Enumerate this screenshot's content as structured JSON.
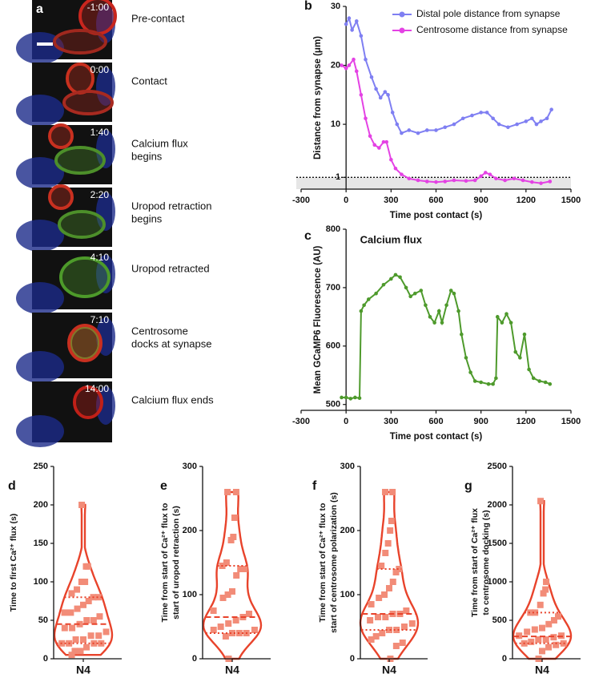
{
  "panel_a": {
    "label": "a",
    "frames": [
      {
        "time": "-1:00",
        "caption": [
          "Pre-contact"
        ]
      },
      {
        "time": "0:00",
        "caption": [
          "Contact"
        ]
      },
      {
        "time": "1:40",
        "caption": [
          "Calcium flux",
          "begins"
        ]
      },
      {
        "time": "2:20",
        "caption": [
          "Uropod retraction",
          "begins"
        ]
      },
      {
        "time": "4:10",
        "caption": [
          "Uropod retracted"
        ]
      },
      {
        "time": "7:10",
        "caption": [
          "Centrosome",
          "docks at synapse"
        ]
      },
      {
        "time": "14:00",
        "caption": [
          "Calcium flux ends"
        ]
      }
    ]
  },
  "chart_data": [
    {
      "type": "line",
      "panel": "b",
      "xlabel": "Time post contact (s)",
      "ylabel": "Distance from synapse (μm)",
      "xlim": [
        -300,
        1500
      ],
      "xticks": [
        -300,
        0,
        300,
        600,
        900,
        1200,
        1500
      ],
      "ylim": [
        -1,
        30
      ],
      "yticks": [
        1,
        10,
        20,
        30
      ],
      "y_axis_crosses_x": 0,
      "threshold": 1,
      "series": [
        {
          "name": "Distal pole distance from synapse",
          "color": "#7f7ff2",
          "x": [
            0,
            20,
            40,
            70,
            100,
            130,
            170,
            200,
            230,
            260,
            280,
            310,
            340,
            370,
            420,
            480,
            540,
            600,
            660,
            720,
            780,
            840,
            900,
            940,
            980,
            1020,
            1080,
            1140,
            1200,
            1240,
            1270,
            1300,
            1340,
            1370
          ],
          "values": [
            27,
            28,
            26,
            27.5,
            25,
            21,
            18,
            16,
            14.5,
            15.5,
            15,
            12,
            10,
            8.5,
            9,
            8.5,
            9,
            9,
            9.5,
            10,
            11,
            11.5,
            12,
            12,
            11,
            10,
            9.5,
            10,
            10.5,
            11,
            10,
            10.5,
            11,
            12.5
          ]
        },
        {
          "name": "Centrosome distance from synapse",
          "color": "#e442e4",
          "x": [
            -30,
            0,
            20,
            50,
            70,
            100,
            130,
            160,
            190,
            220,
            250,
            270,
            300,
            330,
            370,
            420,
            480,
            540,
            600,
            660,
            720,
            800,
            860,
            900,
            930,
            960,
            1000,
            1060,
            1120,
            1180,
            1240,
            1300,
            1360
          ],
          "values": [
            20,
            19.5,
            20,
            21,
            19,
            15,
            11,
            8,
            6.5,
            6,
            7,
            7,
            4,
            2.5,
            1.5,
            0.8,
            0.5,
            0.3,
            0.2,
            0.3,
            0.5,
            0.4,
            0.5,
            1.2,
            1.8,
            1.5,
            0.8,
            0.5,
            0.8,
            0.5,
            0.2,
            0,
            0.3
          ]
        }
      ]
    },
    {
      "type": "line",
      "panel": "c",
      "title": "Calcium flux",
      "xlabel": "Time post contact (s)",
      "ylabel": "Mean GCaMP6 Fluorescence (AU)",
      "xlim": [
        -300,
        1500
      ],
      "xticks": [
        -300,
        0,
        300,
        600,
        900,
        1200,
        1500
      ],
      "ylim": [
        490,
        800
      ],
      "yticks": [
        500,
        600,
        700,
        800
      ],
      "y_axis_crosses_x": 0,
      "series": [
        {
          "name": "Calcium flux",
          "color": "#4e9a2c",
          "x": [
            -30,
            0,
            30,
            60,
            90,
            100,
            120,
            150,
            200,
            250,
            300,
            330,
            360,
            400,
            430,
            460,
            500,
            530,
            560,
            590,
            620,
            640,
            670,
            700,
            720,
            750,
            770,
            800,
            830,
            860,
            900,
            950,
            980,
            1000,
            1010,
            1040,
            1070,
            1100,
            1130,
            1160,
            1190,
            1220,
            1250,
            1290,
            1330,
            1360
          ],
          "values": [
            512,
            512,
            510,
            512,
            511,
            660,
            670,
            680,
            690,
            705,
            715,
            722,
            718,
            700,
            685,
            690,
            695,
            670,
            650,
            640,
            660,
            640,
            670,
            695,
            690,
            660,
            620,
            580,
            555,
            540,
            538,
            535,
            535,
            545,
            650,
            640,
            655,
            640,
            590,
            580,
            620,
            560,
            545,
            540,
            538,
            535
          ]
        }
      ]
    },
    {
      "type": "violin",
      "panel": "d",
      "category": "N4",
      "ylabel": [
        "Time to first Ca²⁺ flux (s)"
      ],
      "color": "#e8432b",
      "point_color": "#f28c78",
      "ylim": [
        0,
        250
      ],
      "yticks": [
        0,
        50,
        100,
        150,
        200,
        250
      ],
      "quartiles": [
        20,
        45,
        80
      ],
      "values": [
        200,
        120,
        120,
        100,
        100,
        90,
        85,
        80,
        80,
        75,
        70,
        65,
        60,
        60,
        55,
        50,
        50,
        45,
        40,
        40,
        35,
        30,
        30,
        25,
        25,
        20,
        20,
        20,
        20,
        15,
        10,
        10,
        5
      ]
    },
    {
      "type": "violin",
      "panel": "e",
      "category": "N4",
      "ylabel": [
        "Time from start of Ca²⁺ flux to",
        "start of uropod retraction (s)"
      ],
      "color": "#e8432b",
      "point_color": "#f28c78",
      "ylim": [
        0,
        300
      ],
      "yticks": [
        0,
        100,
        200,
        300
      ],
      "quartiles": [
        40,
        65,
        145
      ],
      "values": [
        260,
        260,
        220,
        190,
        185,
        150,
        145,
        140,
        140,
        130,
        105,
        100,
        95,
        75,
        70,
        65,
        60,
        55,
        50,
        45,
        45,
        40,
        40,
        40,
        35,
        0
      ]
    },
    {
      "type": "violin",
      "panel": "f",
      "category": "N4",
      "ylabel": [
        "Time from start of Ca²⁺ flux to",
        "start of centrosome polarization (s)"
      ],
      "color": "#e8432b",
      "point_color": "#f28c78",
      "ylim": [
        0,
        300
      ],
      "yticks": [
        0,
        100,
        200,
        300
      ],
      "quartiles": [
        45,
        70,
        140
      ],
      "values": [
        260,
        260,
        215,
        200,
        180,
        165,
        145,
        140,
        135,
        120,
        110,
        100,
        95,
        85,
        75,
        70,
        70,
        65,
        65,
        60,
        55,
        50,
        45,
        45,
        40,
        35,
        30,
        25,
        20,
        0
      ]
    },
    {
      "type": "violin",
      "panel": "g",
      "category": "N4",
      "ylabel": [
        "Time from start of Ca²⁺ flux",
        "to centrosome docking (s)"
      ],
      "color": "#e8432b",
      "point_color": "#f28c78",
      "ylim": [
        0,
        2500
      ],
      "yticks": [
        0,
        500,
        1000,
        1500,
        2000,
        2500
      ],
      "quartiles": [
        200,
        290,
        600
      ],
      "values": [
        2050,
        1000,
        900,
        850,
        700,
        600,
        600,
        550,
        500,
        450,
        400,
        380,
        350,
        300,
        300,
        280,
        250,
        250,
        220,
        200,
        200,
        180,
        150,
        100,
        0
      ]
    }
  ]
}
